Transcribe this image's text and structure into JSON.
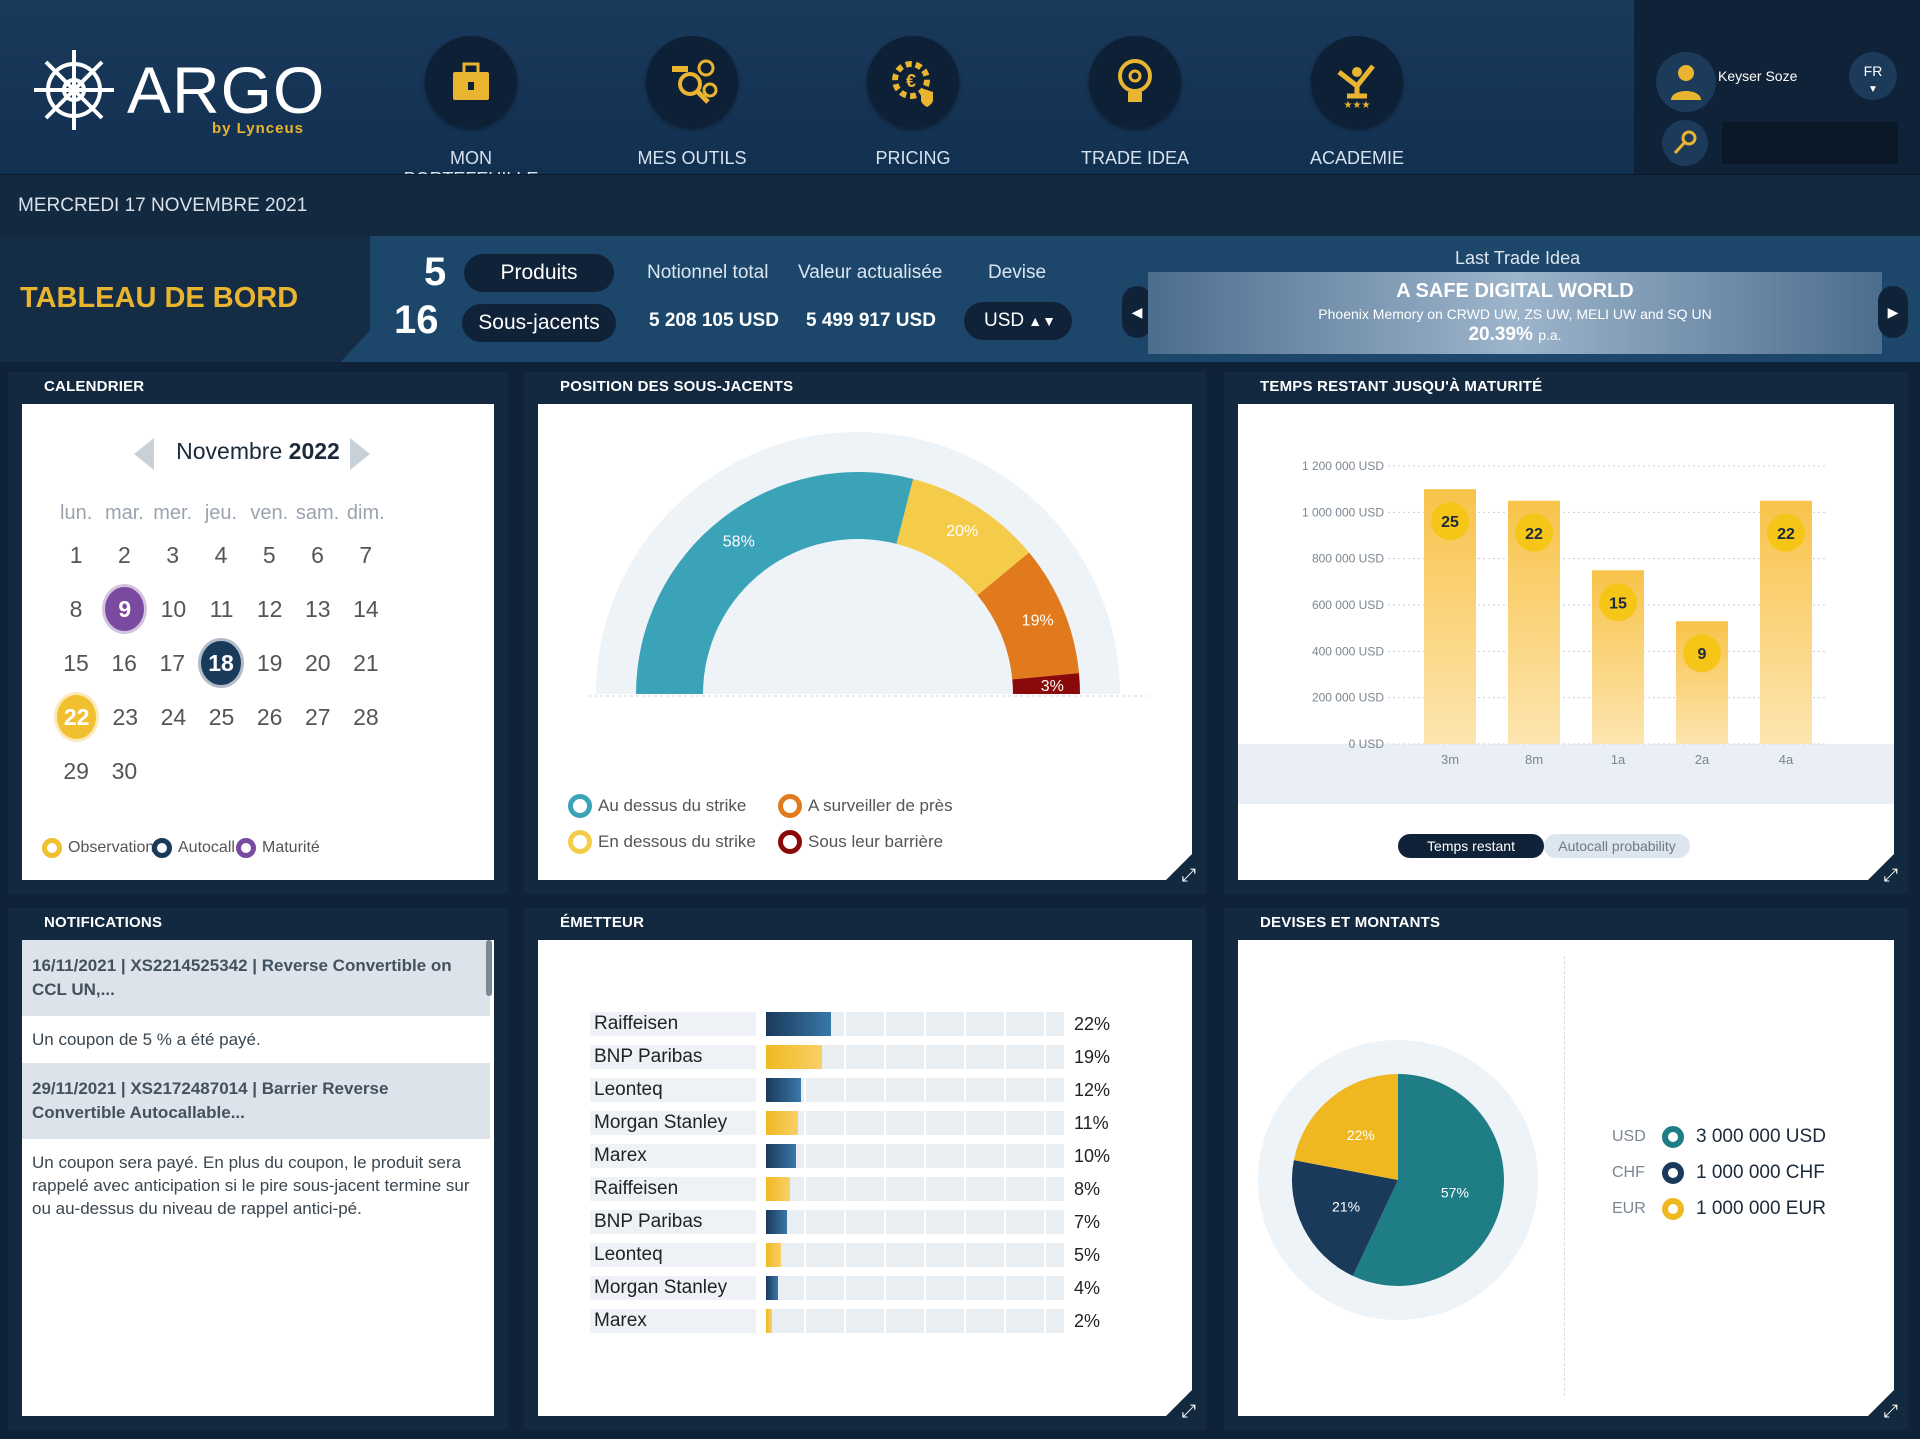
{
  "app": {
    "name": "ARGO",
    "tagline": "by Lynceus"
  },
  "nav": [
    {
      "label": "MON PORTEFEUILLE",
      "icon": "portfolio-icon"
    },
    {
      "label": "MES OUTILS",
      "icon": "tools-icon"
    },
    {
      "label": "PRICING",
      "icon": "pricing-icon"
    },
    {
      "label": "TRADE IDEA",
      "icon": "lightbulb-icon"
    },
    {
      "label": "ACADEMIE",
      "icon": "academy-icon"
    }
  ],
  "user": {
    "name": "Keyser Soze",
    "lang": "FR"
  },
  "date": "MERCREDI 17 NOVEMBRE 2021",
  "summary": {
    "title": "TABLEAU DE BORD",
    "products_count": "5",
    "products_label": "Produits",
    "underlyings_count": "16",
    "underlyings_label": "Sous-jacents",
    "notional_label": "Notionnel total",
    "notional_value": "5 208 105 USD",
    "value_label": "Valeur actualisée",
    "value_value": "5 499 917 USD",
    "currency_label": "Devise",
    "currency_value": "USD"
  },
  "last_trade": {
    "label": "Last Trade Idea",
    "title": "A SAFE DIGITAL WORLD",
    "subtitle": "Phoenix Memory on CRWD UW, ZS UW, MELI UW and SQ UN",
    "rate": "20.39%",
    "rate_unit": "p.a."
  },
  "calendar": {
    "panel_title": "CALENDRIER",
    "month": "Novembre",
    "year": "2022",
    "weekdays": [
      "lun.",
      "mar.",
      "mer.",
      "jeu.",
      "ven.",
      "sam.",
      "dim."
    ],
    "weeks": [
      [
        "1",
        "2",
        "3",
        "4",
        "5",
        "6",
        "7"
      ],
      [
        "8",
        "9",
        "10",
        "11",
        "12",
        "13",
        "14"
      ],
      [
        "15",
        "16",
        "17",
        "18",
        "19",
        "20",
        "21"
      ],
      [
        "22",
        "23",
        "24",
        "25",
        "26",
        "27",
        "28"
      ],
      [
        "29",
        "30",
        "",
        "",
        "",
        "",
        ""
      ]
    ],
    "marked": {
      "9": "maturite",
      "18": "autocall",
      "22": "observation"
    },
    "legend": [
      {
        "label": "Observation",
        "color": "#f0c030"
      },
      {
        "label": "Autocall",
        "color": "#1a3a5c"
      },
      {
        "label": "Maturité",
        "color": "#7a4aa0"
      }
    ]
  },
  "positions": {
    "panel_title": "POSITION DES SOUS-JACENTS",
    "legend": [
      {
        "label": "Au dessus du strike",
        "color": "#3aa3b8"
      },
      {
        "label": "A surveiller de près",
        "color": "#e07a1c"
      },
      {
        "label": "En dessous du strike",
        "color": "#f5cc4a"
      },
      {
        "label": "Sous leur barrière",
        "color": "#8a0a0a"
      }
    ]
  },
  "maturity": {
    "panel_title": "TEMPS RESTANT JUSQU'À MATURITÉ",
    "tabs": [
      "Temps restant",
      "Autocall probability"
    ],
    "y_ticks": [
      "1 200 000 USD",
      "1 000 000 USD",
      "800 000 USD",
      "600 000 USD",
      "400 000 USD",
      "200 000 USD",
      "0 USD"
    ]
  },
  "notifications": {
    "panel_title": "NOTIFICATIONS",
    "items": [
      {
        "head": "16/11/2021 | XS2214525342 | Reverse Convertible on CCL UN,...",
        "text": "Un coupon de 5 % a été payé."
      },
      {
        "head": "29/11/2021 | XS2172487014 | Barrier Reverse Convertible Autocallable...",
        "text": "Un coupon sera payé. En plus du coupon, le produit sera rappelé avec anticipation si le pire sous-jacent termine sur ou au-dessus du niveau de rappel antici-pé."
      }
    ]
  },
  "emetteur": {
    "panel_title": "ÉMETTEUR"
  },
  "devises": {
    "panel_title": "DEVISES ET MONTANTS",
    "items": [
      {
        "code": "USD",
        "amount": "3 000 000 USD",
        "color": "#1e7d85"
      },
      {
        "code": "CHF",
        "amount": "1 000 000 CHF",
        "color": "#1a3a5c"
      },
      {
        "code": "EUR",
        "amount": "1 000 000 EUR",
        "color": "#f0b820"
      }
    ]
  },
  "chart_data": [
    {
      "type": "pie",
      "title": "POSITION DES SOUS-JACENTS",
      "categories": [
        "Au dessus du strike",
        "En dessous du strike",
        "A surveiller de près",
        "Sous leur barrière"
      ],
      "values": [
        58,
        20,
        19,
        3
      ],
      "labels": [
        "58%",
        "20%",
        "19%",
        "3%"
      ],
      "colors": [
        "#3aa3b8",
        "#f5cc4a",
        "#e07a1c",
        "#8a0a0a"
      ]
    },
    {
      "type": "bar",
      "title": "TEMPS RESTANT JUSQU'À MATURITÉ",
      "categories": [
        "3m",
        "8m",
        "1a",
        "2a",
        "4a"
      ],
      "values": [
        1100000,
        1050000,
        750000,
        530000,
        1050000
      ],
      "badges": [
        "25",
        "22",
        "15",
        "9",
        "22"
      ],
      "ylim": [
        0,
        1200000
      ],
      "grid": true
    },
    {
      "type": "bar",
      "title": "ÉMETTEUR",
      "categories": [
        "Raiffeisen",
        "BNP Paribas",
        "Leonteq",
        "Morgan Stanley",
        "Marex",
        "Raiffeisen",
        "BNP Paribas",
        "Leonteq",
        "Morgan Stanley",
        "Marex"
      ],
      "values": [
        22,
        19,
        12,
        11,
        10,
        8,
        7,
        5,
        4,
        2
      ],
      "labels": [
        "22%",
        "19%",
        "12%",
        "11%",
        "10%",
        "8%",
        "7%",
        "5%",
        "4%",
        "2%"
      ]
    },
    {
      "type": "pie",
      "title": "DEVISES ET MONTANTS",
      "categories": [
        "USD",
        "CHF",
        "EUR"
      ],
      "values": [
        57,
        21,
        22
      ],
      "labels": [
        "57%",
        "21%",
        "22%"
      ],
      "colors": [
        "#1e7d85",
        "#1a3a5c",
        "#f0b820"
      ]
    }
  ]
}
